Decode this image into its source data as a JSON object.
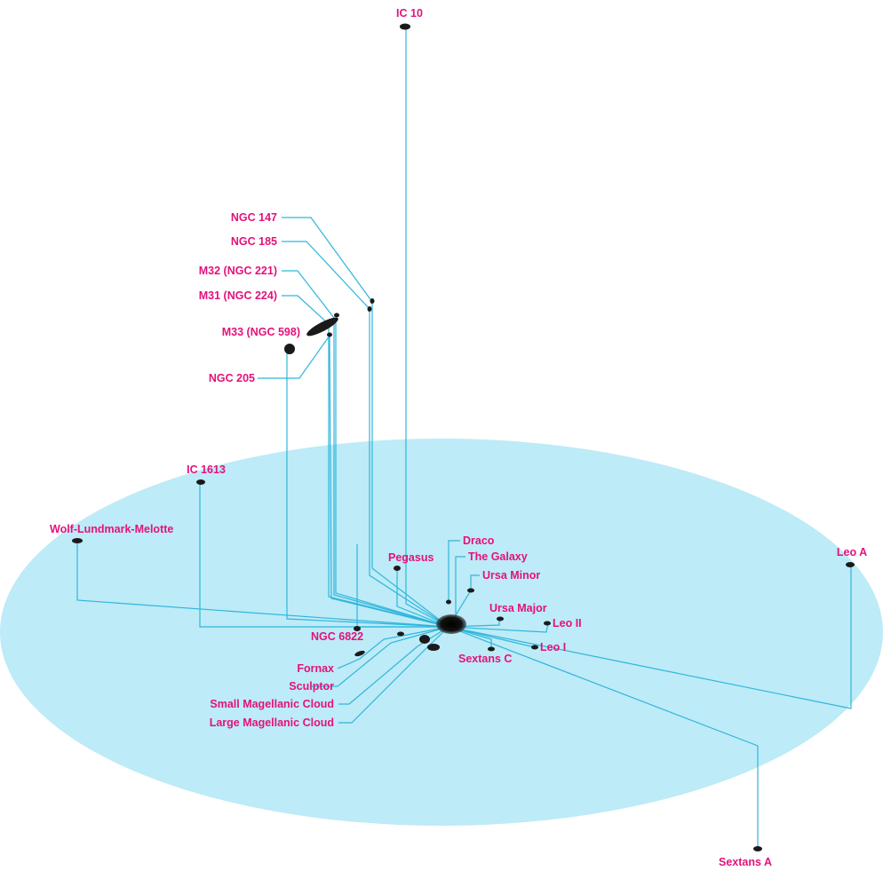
{
  "colors": {
    "plane": "#bdebf7",
    "line": "#2fb6dc",
    "label": "#e4127a",
    "galaxy": "#1a1a1a",
    "background": "#ffffff"
  },
  "center_name": "The Galaxy",
  "galaxies": [
    {
      "id": "ic10",
      "label": "IC 10"
    },
    {
      "id": "ngc147",
      "label": "NGC 147"
    },
    {
      "id": "ngc185",
      "label": "NGC 185"
    },
    {
      "id": "m32",
      "label": "M32 (NGC 221)"
    },
    {
      "id": "m31",
      "label": "M31 (NGC 224)"
    },
    {
      "id": "m33",
      "label": "M33 (NGC 598)"
    },
    {
      "id": "ngc205",
      "label": "NGC 205"
    },
    {
      "id": "ic1613",
      "label": "IC 1613"
    },
    {
      "id": "wlm",
      "label": "Wolf-Lundmark-Melotte"
    },
    {
      "id": "pegasus",
      "label": "Pegasus"
    },
    {
      "id": "draco",
      "label": "Draco"
    },
    {
      "id": "thegalaxy",
      "label": "The Galaxy"
    },
    {
      "id": "ursaminor",
      "label": "Ursa Minor"
    },
    {
      "id": "ursamajor",
      "label": "Ursa Major"
    },
    {
      "id": "leoii",
      "label": "Leo II"
    },
    {
      "id": "leoi",
      "label": "Leo I"
    },
    {
      "id": "sextansc",
      "label": "Sextans C"
    },
    {
      "id": "ngc6822",
      "label": "NGC 6822"
    },
    {
      "id": "fornax",
      "label": "Fornax"
    },
    {
      "id": "sculptor",
      "label": "Sculptor"
    },
    {
      "id": "smc",
      "label": "Small Magellanic Cloud"
    },
    {
      "id": "lmc",
      "label": "Large Magellanic Cloud"
    },
    {
      "id": "leoa",
      "label": "Leo A"
    },
    {
      "id": "sextansa",
      "label": "Sextans A"
    }
  ]
}
